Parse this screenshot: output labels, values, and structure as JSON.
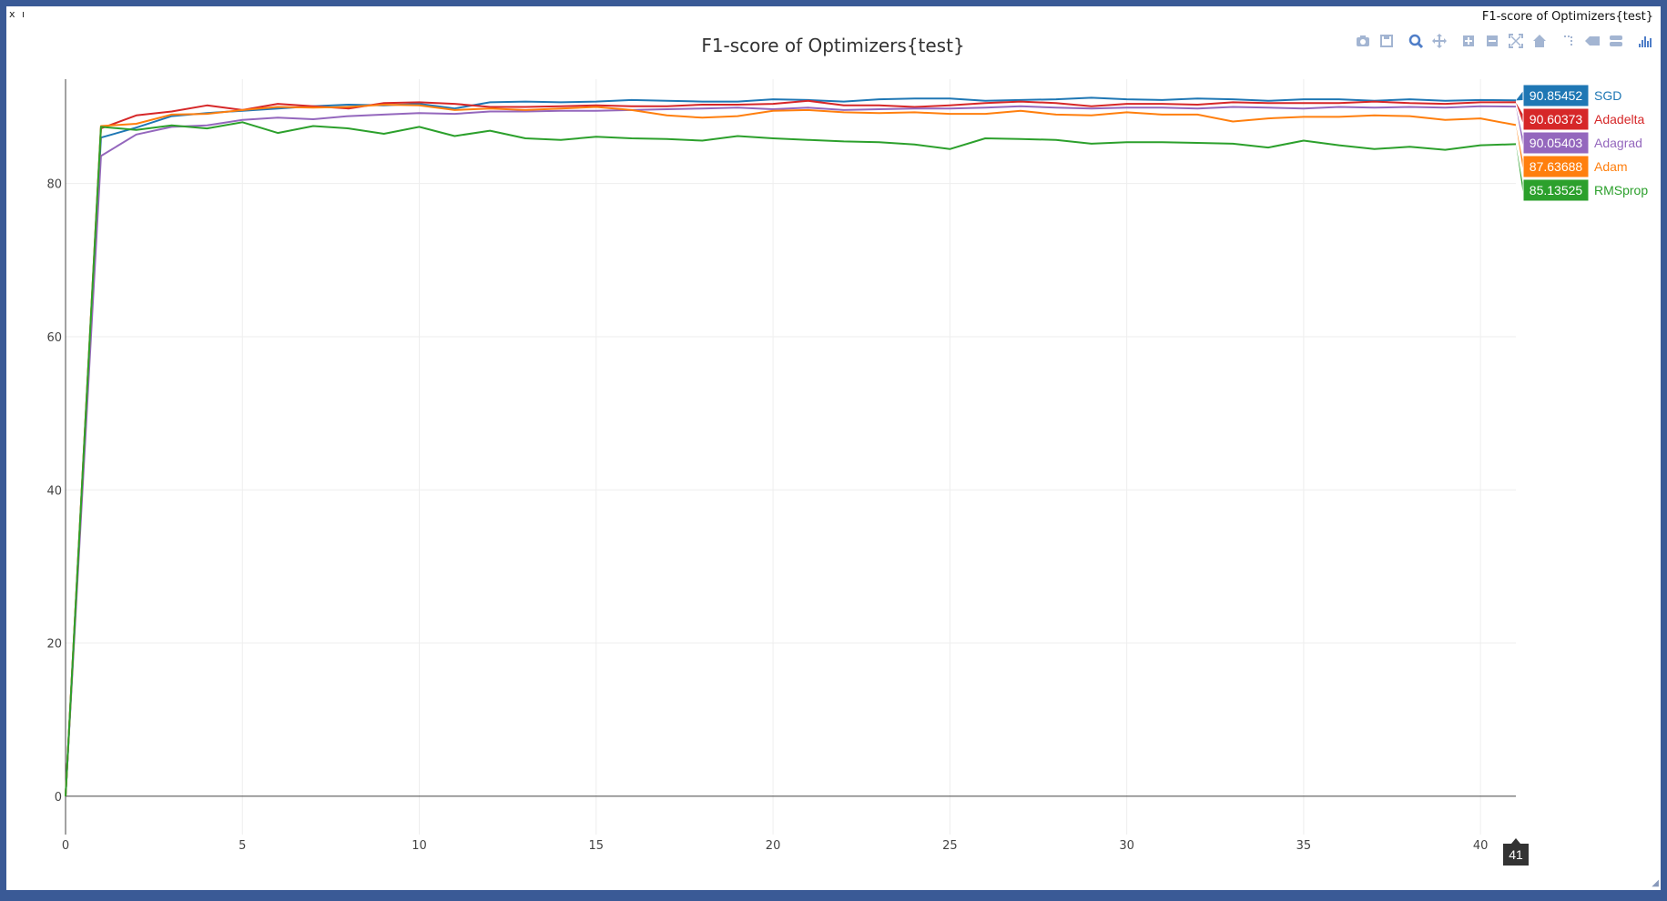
{
  "window": {
    "controls": [
      "x",
      "ı"
    ],
    "corner_title": "F1-score of Optimizers{test}"
  },
  "toolbar": {
    "icon_color": "#a3b5d2",
    "active_color": "#4f7ec8",
    "items": [
      {
        "name": "camera-icon"
      },
      {
        "name": "save-icon"
      },
      {
        "name": "zoom-icon"
      },
      {
        "name": "pan-icon"
      },
      {
        "name": "zoom-in-icon"
      },
      {
        "name": "zoom-out-icon"
      },
      {
        "name": "autoscale-icon"
      },
      {
        "name": "reset-axes-icon"
      },
      {
        "name": "spike-lines-icon"
      },
      {
        "name": "hover-closest-icon"
      },
      {
        "name": "hover-compare-icon"
      },
      {
        "name": "plotly-logo-icon"
      }
    ]
  },
  "chart_data": {
    "type": "line",
    "title": "F1-score of Optimizers{test}",
    "xlabel": "",
    "ylabel": "",
    "xlim": [
      0,
      41
    ],
    "ylim": [
      -5,
      96
    ],
    "x_ticks": [
      0,
      5,
      10,
      15,
      20,
      25,
      30,
      35,
      40
    ],
    "y_ticks": [
      0,
      20,
      40,
      60,
      80
    ],
    "grid": true,
    "hover_x": "41",
    "series": [
      {
        "name": "SGD",
        "color": "#1f77b4",
        "hover_value": "90.85452",
        "values": [
          0,
          86.0,
          87.3,
          88.8,
          89.2,
          89.5,
          89.8,
          90.1,
          90.3,
          90.2,
          90.4,
          89.8,
          90.6,
          90.7,
          90.6,
          90.7,
          90.9,
          90.8,
          90.7,
          90.7,
          91.0,
          90.9,
          90.7,
          91.0,
          91.1,
          91.1,
          90.8,
          90.9,
          91.0,
          91.2,
          91.0,
          90.9,
          91.1,
          91.0,
          90.8,
          91.0,
          91.0,
          90.8,
          91.0,
          90.8,
          90.9,
          90.85
        ]
      },
      {
        "name": "Adadelta",
        "color": "#d62728",
        "hover_value": "90.60373",
        "values": [
          0,
          87.2,
          88.9,
          89.4,
          90.2,
          89.6,
          90.4,
          90.1,
          89.8,
          90.5,
          90.6,
          90.4,
          90.0,
          90.0,
          90.1,
          90.2,
          90.1,
          90.1,
          90.3,
          90.3,
          90.4,
          90.8,
          90.2,
          90.2,
          90.0,
          90.2,
          90.5,
          90.7,
          90.5,
          90.1,
          90.4,
          90.4,
          90.3,
          90.6,
          90.5,
          90.5,
          90.5,
          90.7,
          90.5,
          90.4,
          90.6,
          90.6
        ]
      },
      {
        "name": "Adagrad",
        "color": "#9467bd",
        "hover_value": "90.05403",
        "values": [
          0,
          83.6,
          86.4,
          87.4,
          87.6,
          88.3,
          88.6,
          88.4,
          88.8,
          89.0,
          89.2,
          89.1,
          89.4,
          89.4,
          89.5,
          89.5,
          89.6,
          89.7,
          89.8,
          89.9,
          89.7,
          89.9,
          89.6,
          89.7,
          89.8,
          89.8,
          89.9,
          90.1,
          89.9,
          89.8,
          89.9,
          89.9,
          89.8,
          90.0,
          89.9,
          89.8,
          90.0,
          89.9,
          90.0,
          89.9,
          90.1,
          90.05
        ]
      },
      {
        "name": "Adam",
        "color": "#ff7f0e",
        "hover_value": "87.63688",
        "values": [
          0,
          87.5,
          87.8,
          89.0,
          89.1,
          89.6,
          90.0,
          89.9,
          90.0,
          90.3,
          90.2,
          89.6,
          89.8,
          89.6,
          89.8,
          90.0,
          89.6,
          88.9,
          88.6,
          88.8,
          89.5,
          89.6,
          89.3,
          89.2,
          89.3,
          89.1,
          89.1,
          89.5,
          89.0,
          88.9,
          89.3,
          89.0,
          89.0,
          88.1,
          88.5,
          88.7,
          88.7,
          88.9,
          88.8,
          88.3,
          88.5,
          87.64
        ]
      },
      {
        "name": "RMSprop",
        "color": "#2ca02c",
        "hover_value": "85.13525",
        "values": [
          0,
          87.4,
          87.0,
          87.6,
          87.2,
          88.0,
          86.6,
          87.5,
          87.2,
          86.5,
          87.4,
          86.2,
          86.9,
          85.9,
          85.7,
          86.1,
          85.9,
          85.8,
          85.6,
          86.2,
          85.9,
          85.7,
          85.5,
          85.4,
          85.1,
          84.5,
          85.9,
          85.8,
          85.7,
          85.2,
          85.4,
          85.4,
          85.3,
          85.2,
          84.7,
          85.6,
          85.0,
          84.5,
          84.8,
          84.4,
          85.0,
          85.14
        ]
      }
    ]
  }
}
